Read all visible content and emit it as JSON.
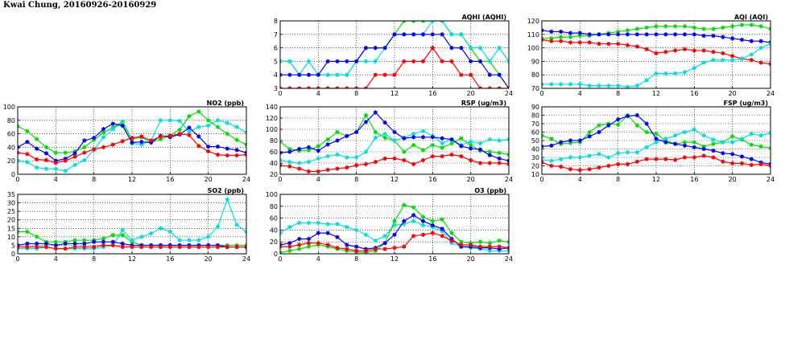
{
  "page": {
    "title": "Kwai Chung, 20160926-20160929"
  },
  "chart_data": [
    {
      "id": "aqhi",
      "type": "line",
      "title": "AQHI (AQHI)",
      "xlim": [
        0,
        24
      ],
      "ylim": [
        3,
        8
      ],
      "xticks": [
        0,
        4,
        8,
        12,
        16,
        20,
        24
      ],
      "yticks": [
        3,
        4,
        5,
        6,
        7,
        8
      ],
      "grid": true,
      "series": [
        {
          "color": "#00e000",
          "values": [
            5,
            5,
            4,
            4,
            4,
            4,
            4,
            4,
            5,
            6,
            6,
            6,
            7,
            8,
            8,
            8,
            8,
            8,
            7,
            7,
            6,
            5,
            5,
            4,
            3
          ]
        },
        {
          "color": "#00e0e0",
          "values": [
            5,
            5,
            4,
            5,
            4,
            4,
            4,
            4,
            5,
            5,
            5,
            6,
            7,
            7,
            7,
            7,
            8,
            8,
            7,
            7,
            6,
            6,
            5,
            6,
            5
          ]
        },
        {
          "color": "#0000ff",
          "values": [
            4,
            4,
            4,
            4,
            4,
            5,
            5,
            5,
            5,
            6,
            6,
            6,
            7,
            7,
            7,
            7,
            7,
            7,
            6,
            6,
            5,
            5,
            4,
            4,
            3
          ]
        },
        {
          "color": "#ff0000",
          "values": [
            3,
            3,
            3,
            3,
            3,
            3,
            3,
            3,
            3,
            3,
            4,
            4,
            4,
            5,
            5,
            5,
            6,
            5,
            5,
            4,
            4,
            3,
            3,
            3,
            3
          ]
        }
      ]
    },
    {
      "id": "aqi",
      "type": "line",
      "title": "AQI (AQI)",
      "xlim": [
        0,
        24
      ],
      "ylim": [
        70,
        120
      ],
      "xticks": [
        0,
        4,
        8,
        12,
        16,
        20,
        24
      ],
      "yticks": [
        70,
        80,
        90,
        100,
        110,
        120
      ],
      "grid": true,
      "series": [
        {
          "color": "#00e000",
          "values": [
            107,
            107,
            108,
            108,
            109,
            109,
            110,
            111,
            112,
            113,
            114,
            115,
            116,
            116,
            116,
            116,
            115,
            114,
            114,
            115,
            116,
            117,
            117,
            116,
            114
          ]
        },
        {
          "color": "#0000ff",
          "values": [
            113,
            112,
            112,
            111,
            111,
            110,
            110,
            110,
            110,
            110,
            110,
            110,
            110,
            110,
            110,
            110,
            110,
            109,
            109,
            108,
            107,
            106,
            105,
            105,
            104
          ]
        },
        {
          "color": "#ff0000",
          "values": [
            106,
            105,
            105,
            104,
            104,
            104,
            103,
            103,
            103,
            102,
            101,
            99,
            96,
            97,
            98,
            99,
            98,
            98,
            97,
            96,
            94,
            92,
            91,
            89,
            88
          ]
        },
        {
          "color": "#00e0e0",
          "values": [
            73,
            73,
            73,
            73,
            73,
            72,
            72,
            72,
            72,
            71,
            72,
            76,
            81,
            81,
            81,
            82,
            85,
            89,
            91,
            91,
            91,
            92,
            95,
            100,
            103
          ]
        }
      ]
    },
    {
      "id": "no2",
      "type": "line",
      "title": "NO2 (ppb)",
      "xlim": [
        0,
        24
      ],
      "ylim": [
        0,
        100
      ],
      "xticks": [
        0,
        4,
        8,
        12,
        16,
        20,
        24
      ],
      "yticks": [
        0,
        20,
        40,
        60,
        80,
        100
      ],
      "grid": true,
      "series": [
        {
          "color": "#00e000",
          "values": [
            71,
            64,
            52,
            40,
            32,
            32,
            34,
            40,
            51,
            62,
            69,
            78,
            52,
            55,
            47,
            52,
            58,
            66,
            86,
            93,
            80,
            70,
            60,
            51,
            44
          ]
        },
        {
          "color": "#00e0e0",
          "values": [
            20,
            18,
            10,
            8,
            8,
            5,
            14,
            21,
            36,
            55,
            67,
            76,
            46,
            44,
            50,
            80,
            80,
            79,
            63,
            70,
            72,
            80,
            76,
            70,
            62
          ]
        },
        {
          "color": "#0000ff",
          "values": [
            40,
            48,
            38,
            31,
            20,
            23,
            31,
            50,
            54,
            67,
            75,
            72,
            47,
            48,
            47,
            57,
            55,
            59,
            69,
            56,
            41,
            41,
            38,
            36,
            32
          ]
        },
        {
          "color": "#ff0000",
          "values": [
            32,
            30,
            22,
            21,
            17,
            20,
            26,
            32,
            37,
            40,
            44,
            49,
            54,
            56,
            50,
            56,
            57,
            60,
            58,
            42,
            34,
            29,
            28,
            28,
            29
          ]
        }
      ]
    },
    {
      "id": "rsp",
      "type": "line",
      "title": "RSP (ug/m3)",
      "xlim": [
        0,
        24
      ],
      "ylim": [
        20,
        140
      ],
      "xticks": [
        0,
        4,
        8,
        12,
        16,
        20,
        24
      ],
      "yticks": [
        20,
        40,
        60,
        80,
        100,
        120,
        140
      ],
      "grid": true,
      "series": [
        {
          "color": "#00e000",
          "values": [
            78,
            65,
            62,
            63,
            70,
            82,
            95,
            88,
            95,
            125,
            95,
            85,
            80,
            60,
            72,
            63,
            72,
            67,
            75,
            84,
            72,
            62,
            60,
            58,
            55
          ]
        },
        {
          "color": "#00e0e0",
          "values": [
            45,
            42,
            40,
            42,
            48,
            52,
            55,
            50,
            50,
            60,
            85,
            92,
            80,
            85,
            92,
            97,
            88,
            75,
            82,
            72,
            78,
            75,
            82,
            80,
            82
          ]
        },
        {
          "color": "#0000ff",
          "values": [
            58,
            60,
            65,
            68,
            62,
            73,
            80,
            88,
            95,
            113,
            130,
            112,
            95,
            84,
            86,
            86,
            86,
            84,
            82,
            70,
            66,
            64,
            54,
            48,
            44
          ]
        },
        {
          "color": "#ff0000",
          "values": [
            36,
            34,
            30,
            25,
            25,
            28,
            30,
            32,
            36,
            38,
            42,
            48,
            48,
            45,
            38,
            45,
            52,
            52,
            55,
            52,
            45,
            40,
            40,
            40,
            38
          ]
        }
      ]
    },
    {
      "id": "fsp",
      "type": "line",
      "title": "FSP (ug/m3)",
      "xlim": [
        0,
        24
      ],
      "ylim": [
        10,
        90
      ],
      "xticks": [
        0,
        4,
        8,
        12,
        16,
        20,
        24
      ],
      "yticks": [
        10,
        20,
        30,
        40,
        50,
        60,
        70,
        80,
        90
      ],
      "grid": true,
      "series": [
        {
          "color": "#00e000",
          "values": [
            56,
            52,
            46,
            47,
            48,
            60,
            68,
            70,
            69,
            80,
            68,
            60,
            58,
            50,
            46,
            48,
            48,
            43,
            46,
            48,
            55,
            51,
            45,
            43,
            41
          ]
        },
        {
          "color": "#00e0e0",
          "values": [
            27,
            26,
            28,
            30,
            30,
            32,
            34,
            30,
            35,
            36,
            36,
            42,
            48,
            52,
            56,
            60,
            63,
            56,
            51,
            48,
            48,
            52,
            58,
            56,
            59
          ]
        },
        {
          "color": "#0000ff",
          "values": [
            43,
            44,
            48,
            50,
            50,
            55,
            60,
            68,
            75,
            79,
            80,
            70,
            52,
            48,
            46,
            44,
            42,
            40,
            38,
            35,
            34,
            31,
            28,
            24,
            22
          ]
        },
        {
          "color": "#ff0000",
          "values": [
            24,
            20,
            19,
            16,
            15,
            16,
            18,
            20,
            22,
            22,
            25,
            28,
            28,
            28,
            27,
            30,
            30,
            32,
            30,
            25,
            23,
            23,
            21,
            22,
            20
          ]
        }
      ]
    },
    {
      "id": "so2",
      "type": "line",
      "title": "SO2 (ppb)",
      "xlim": [
        0,
        24
      ],
      "ylim": [
        0,
        35
      ],
      "xticks": [
        0,
        4,
        8,
        12,
        16,
        20,
        24
      ],
      "yticks": [
        0,
        5,
        10,
        15,
        20,
        25,
        30,
        35
      ],
      "grid": true,
      "series": [
        {
          "color": "#00e000",
          "values": [
            13,
            13,
            10,
            7,
            7,
            7,
            8,
            8,
            8,
            9,
            11,
            11,
            7,
            5,
            5,
            5,
            5,
            5,
            5,
            5,
            5,
            5,
            5,
            5,
            5
          ]
        },
        {
          "color": "#00e0e0",
          "values": [
            3,
            3,
            3,
            4,
            3,
            3,
            3,
            3,
            3,
            4,
            5,
            14,
            8,
            10,
            12,
            15,
            13,
            8,
            8,
            8,
            10,
            16,
            32,
            17,
            13
          ]
        },
        {
          "color": "#0000ff",
          "values": [
            5,
            6,
            6,
            6,
            5,
            6,
            6,
            6,
            7,
            7,
            7,
            6,
            5,
            5,
            5,
            5,
            5,
            5,
            5,
            5,
            5,
            5,
            4,
            4,
            4
          ]
        },
        {
          "color": "#ff0000",
          "values": [
            4,
            4,
            4,
            4,
            3,
            3,
            4,
            4,
            4,
            5,
            5,
            4,
            4,
            4,
            4,
            4,
            4,
            4,
            4,
            4,
            4,
            4,
            4,
            4,
            4
          ]
        }
      ]
    },
    {
      "id": "o3",
      "type": "line",
      "title": "O3 (ppb)",
      "xlim": [
        0,
        24
      ],
      "ylim": [
        0,
        100
      ],
      "xticks": [
        0,
        4,
        8,
        12,
        16,
        20,
        24
      ],
      "yticks": [
        0,
        20,
        40,
        60,
        80,
        100
      ],
      "grid": true,
      "series": [
        {
          "color": "#00e0e0",
          "values": [
            35,
            45,
            52,
            52,
            52,
            50,
            50,
            45,
            40,
            32,
            22,
            30,
            48,
            50,
            55,
            48,
            45,
            38,
            18,
            12,
            10,
            8,
            5,
            5,
            5
          ]
        },
        {
          "color": "#00e000",
          "values": [
            2,
            5,
            8,
            12,
            15,
            12,
            8,
            5,
            3,
            2,
            5,
            18,
            55,
            82,
            78,
            62,
            55,
            58,
            35,
            20,
            18,
            20,
            18,
            22,
            20
          ]
        },
        {
          "color": "#0000ff",
          "values": [
            15,
            18,
            25,
            25,
            35,
            35,
            28,
            15,
            12,
            8,
            10,
            18,
            32,
            55,
            65,
            55,
            48,
            42,
            25,
            12,
            12,
            10,
            10,
            8,
            10
          ]
        },
        {
          "color": "#ff0000",
          "values": [
            12,
            12,
            15,
            18,
            18,
            15,
            10,
            8,
            5,
            5,
            8,
            8,
            10,
            12,
            30,
            32,
            35,
            30,
            22,
            15,
            15,
            12,
            12,
            12,
            10
          ]
        }
      ]
    }
  ]
}
